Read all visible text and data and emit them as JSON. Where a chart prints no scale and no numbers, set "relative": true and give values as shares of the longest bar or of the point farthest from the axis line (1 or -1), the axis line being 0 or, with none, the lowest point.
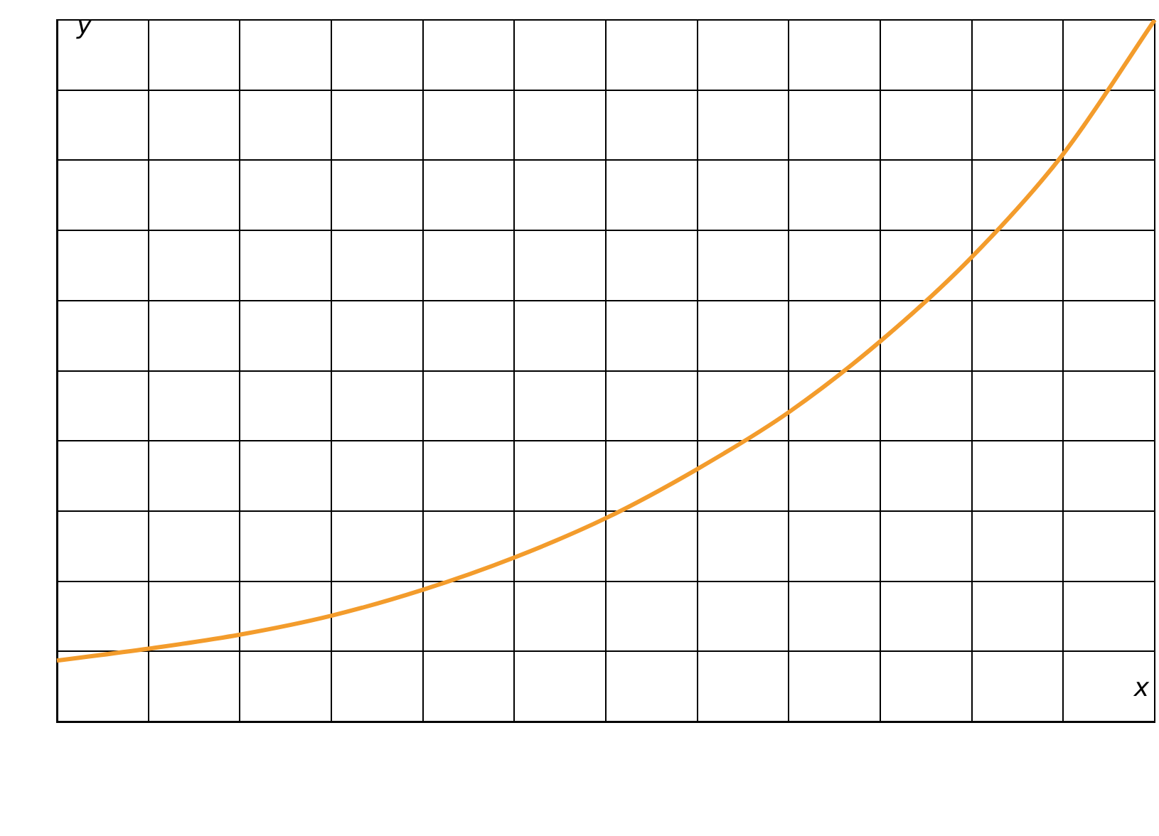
{
  "chart_data": {
    "type": "line",
    "xlabel": "x",
    "ylabel": "y",
    "relative": true,
    "grid": true,
    "marker": "none",
    "line_style": "solid",
    "categories": [
      null,
      null,
      null,
      null,
      null,
      null,
      null,
      null,
      null,
      null,
      null,
      null,
      null
    ],
    "series": [
      {
        "color": "#f39c2c",
        "values": [
          0.087,
          0.104,
          0.124,
          0.151,
          0.188,
          0.234,
          0.29,
          0.36,
          0.441,
          0.542,
          0.662,
          0.809,
          1
        ]
      }
    ]
  }
}
